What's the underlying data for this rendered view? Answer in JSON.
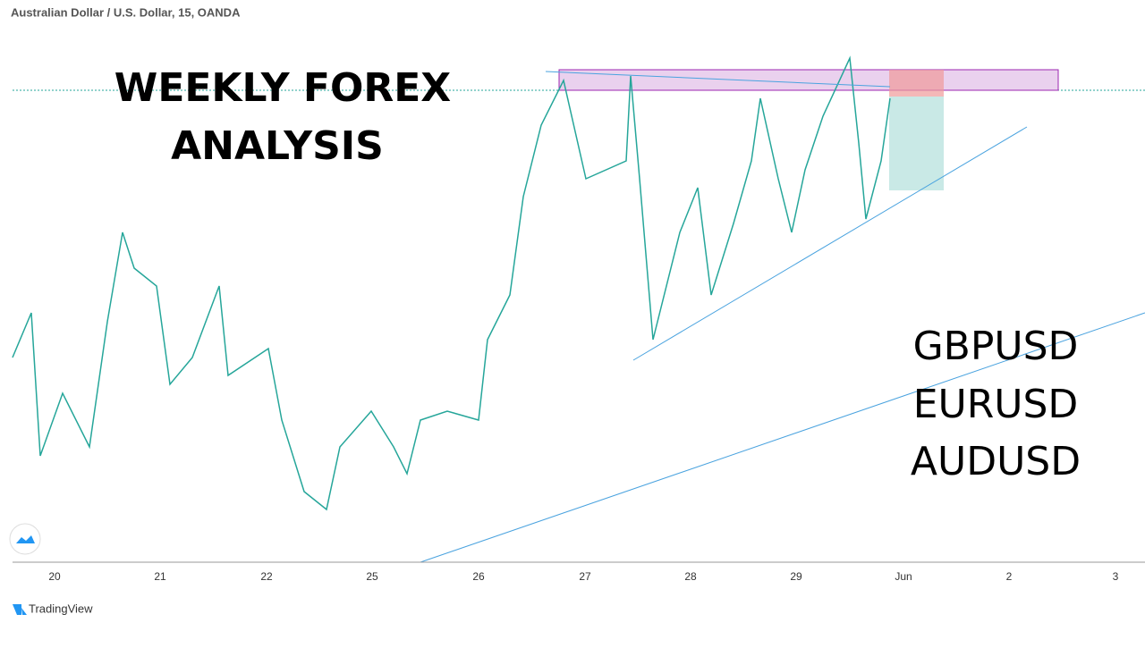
{
  "header": {
    "symbol": "Australian Dollar / U.S. Dollar, 15, OANDA"
  },
  "overlay": {
    "title_lines": [
      "WEEKLY FOREX",
      "ANALYSIS"
    ],
    "pairs": [
      "GBPUSD",
      "EURUSD",
      "AUDUSD"
    ]
  },
  "time_axis": {
    "labels": [
      "20",
      "21",
      "22",
      "25",
      "26",
      "27",
      "28",
      "29",
      "Jun",
      "2",
      "3"
    ]
  },
  "footer": {
    "brand": "TradingView"
  }
}
